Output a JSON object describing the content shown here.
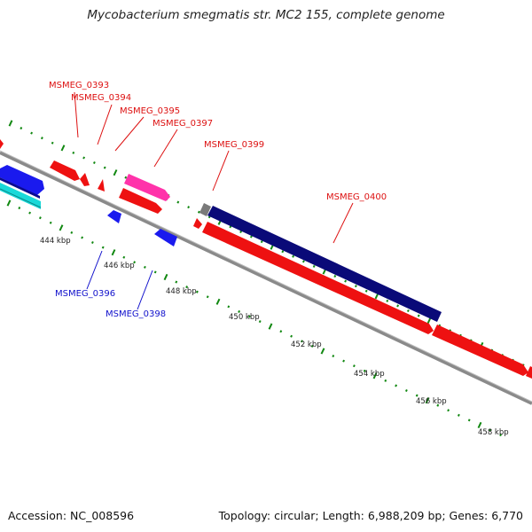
{
  "title": "Mycobacterium smegmatis str. MC2 155, complete genome",
  "accession": "Accession: NC_008596",
  "summary": "Topology: circular; Length: 6,988,209 bp; Genes: 6,770",
  "colors": {
    "gene_forward": "#ee1111",
    "gene_reverse": "#1a1aee",
    "gene_other_forward": "#ff33aa",
    "gene_highlight_reverse": "#0a0a78",
    "gene_gray": "#7a7a7a",
    "gene_cyan": "#19d9d9",
    "backbone": "#8a8a8a",
    "tick": "#118811",
    "label_red": "#dd1111",
    "label_blue": "#1111cc"
  },
  "kbp_ticks": [
    {
      "label": "444 kbp"
    },
    {
      "label": "446 kbp"
    },
    {
      "label": "448 kbp"
    },
    {
      "label": "450 kbp"
    },
    {
      "label": "452 kbp"
    },
    {
      "label": "454 kbp"
    },
    {
      "label": "456 kbp"
    },
    {
      "label": "458 kbp"
    }
  ],
  "gene_labels": [
    {
      "name": "MSMEG_0393",
      "strand": "forward"
    },
    {
      "name": "MSMEG_0394",
      "strand": "forward"
    },
    {
      "name": "MSMEG_0395",
      "strand": "forward"
    },
    {
      "name": "MSMEG_0397",
      "strand": "forward"
    },
    {
      "name": "MSMEG_0399",
      "strand": "forward"
    },
    {
      "name": "MSMEG_0400",
      "strand": "forward"
    },
    {
      "name": "MSMEG_0396",
      "strand": "reverse"
    },
    {
      "name": "MSMEG_0398",
      "strand": "reverse"
    }
  ]
}
